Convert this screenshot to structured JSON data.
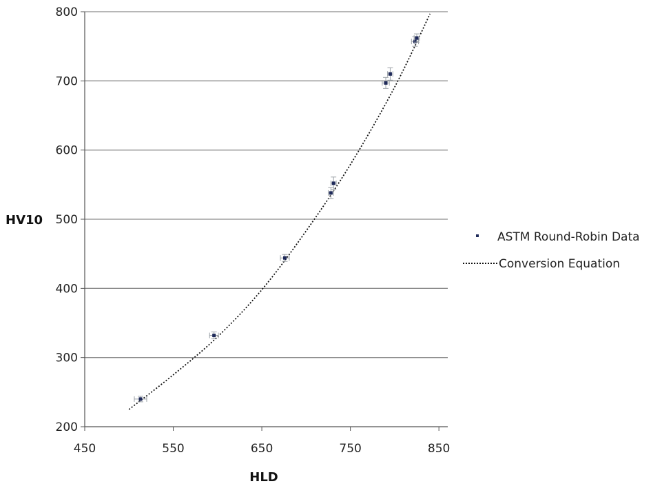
{
  "chart_data": {
    "type": "scatter",
    "title": "",
    "xlabel": "HLD",
    "ylabel": "HV10",
    "xlim": [
      450,
      860
    ],
    "ylim": [
      200,
      800
    ],
    "xticks": [
      450,
      550,
      650,
      750,
      850
    ],
    "yticks": [
      200,
      300,
      400,
      500,
      600,
      700,
      800
    ],
    "grid": "horizontal",
    "legend_position": "right",
    "series": [
      {
        "name": "ASTM Round-Robin Data",
        "kind": "scatter",
        "color": "#1f2a5a",
        "points": [
          {
            "x": 513,
            "y": 240,
            "xerr": 7,
            "yerr": 4
          },
          {
            "x": 596,
            "y": 332,
            "xerr": 5,
            "yerr": 5
          },
          {
            "x": 676,
            "y": 444,
            "xerr": 5,
            "yerr": 5
          },
          {
            "x": 728,
            "y": 538,
            "xerr": 3,
            "yerr": 8
          },
          {
            "x": 731,
            "y": 552,
            "xerr": 3,
            "yerr": 9
          },
          {
            "x": 790,
            "y": 697,
            "xerr": 4,
            "yerr": 8
          },
          {
            "x": 795,
            "y": 710,
            "xerr": 3,
            "yerr": 9
          },
          {
            "x": 823,
            "y": 757,
            "xerr": 4,
            "yerr": 7
          },
          {
            "x": 825,
            "y": 762,
            "xerr": 3,
            "yerr": 6
          }
        ]
      },
      {
        "name": "Conversion Equation",
        "kind": "dotted-line",
        "color": "#111111",
        "points": [
          {
            "x": 500,
            "y": 225
          },
          {
            "x": 550,
            "y": 275
          },
          {
            "x": 600,
            "y": 330
          },
          {
            "x": 650,
            "y": 398
          },
          {
            "x": 700,
            "y": 483
          },
          {
            "x": 750,
            "y": 579
          },
          {
            "x": 800,
            "y": 691
          },
          {
            "x": 840,
            "y": 797
          }
        ]
      }
    ]
  }
}
